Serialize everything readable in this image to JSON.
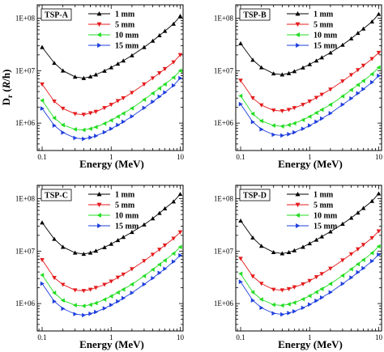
{
  "figure": {
    "ylabel_main": "D",
    "ylabel_sub": "r",
    "ylabel_unit_open": " (",
    "ylabel_unit_italic": "R",
    "ylabel_unit_close": "/h)",
    "xlabel": "Energy (MeV)"
  },
  "chart_data": [
    {
      "type": "line",
      "panel_label": "TSP-A",
      "xscale": "log",
      "yscale": "log",
      "xlim": [
        0.085,
        11
      ],
      "ylim": [
        300000,
        180000000
      ],
      "x_ticks": [
        {
          "value": 0.1,
          "label": "0.1"
        },
        {
          "value": 1,
          "label": "1"
        },
        {
          "value": 10,
          "label": "10"
        }
      ],
      "y_ticks": [
        {
          "value": 1000000,
          "label": "1E+06"
        },
        {
          "value": 10000000,
          "label": "1E+07"
        },
        {
          "value": 100000000,
          "label": "1E+08"
        }
      ],
      "legend_position": "top-center",
      "x": [
        0.1,
        0.15,
        0.2,
        0.3,
        0.4,
        0.5,
        0.6,
        0.8,
        1,
        1.25,
        1.5,
        2,
        3,
        4,
        5,
        6,
        8,
        10
      ],
      "series": [
        {
          "name": "1 mm",
          "color": "#000000",
          "marker": "up",
          "values": [
            28000000,
            14000000,
            10000000,
            7600000,
            7200000,
            7700000,
            8400000,
            9900000,
            11500000,
            13500000,
            15500000,
            19500000,
            28000000,
            37000000,
            47000000,
            57000000,
            78000000,
            110000000
          ]
        },
        {
          "name": "5 mm",
          "color": "#e41a1c",
          "marker": "down",
          "values": [
            5500000,
            2600000,
            1900000,
            1500000,
            1450000,
            1550000,
            1650000,
            1950000,
            2250000,
            2650000,
            3000000,
            3800000,
            5500000,
            7200000,
            9000000,
            10800000,
            14500000,
            20000000
          ]
        },
        {
          "name": "10 mm",
          "color": "#22dd22",
          "marker": "left",
          "values": [
            2700000,
            1250000,
            920000,
            760000,
            740000,
            780000,
            840000,
            980000,
            1130000,
            1330000,
            1530000,
            1920000,
            2800000,
            3700000,
            4600000,
            5500000,
            7400000,
            10000000
          ]
        },
        {
          "name": "15 mm",
          "color": "#1f3fdd",
          "marker": "right",
          "values": [
            1900000,
            900000,
            660000,
            520000,
            500000,
            530000,
            570000,
            670000,
            780000,
            920000,
            1060000,
            1340000,
            1950000,
            2550000,
            3200000,
            3850000,
            5200000,
            7200000
          ]
        }
      ]
    },
    {
      "type": "line",
      "panel_label": "TSP-B",
      "xscale": "log",
      "yscale": "log",
      "xlim": [
        0.085,
        11
      ],
      "ylim": [
        300000,
        180000000
      ],
      "x_ticks": [
        {
          "value": 0.1,
          "label": "0.1"
        },
        {
          "value": 1,
          "label": "1"
        },
        {
          "value": 10,
          "label": "10"
        }
      ],
      "y_ticks": [
        {
          "value": 1000000,
          "label": "1E+06"
        },
        {
          "value": 10000000,
          "label": "1E+07"
        },
        {
          "value": 100000000,
          "label": "1E+08"
        }
      ],
      "legend_position": "top-center",
      "x": [
        0.1,
        0.15,
        0.2,
        0.3,
        0.4,
        0.5,
        0.6,
        0.8,
        1,
        1.25,
        1.5,
        2,
        3,
        4,
        5,
        6,
        8,
        10
      ],
      "series": [
        {
          "name": "1 mm",
          "color": "#000000",
          "marker": "up",
          "values": [
            33000000,
            16000000,
            11500000,
            8800000,
            8400000,
            8900000,
            9700000,
            11400000,
            13200000,
            15500000,
            17800000,
            22000000,
            31000000,
            41000000,
            52000000,
            63000000,
            86000000,
            120000000
          ]
        },
        {
          "name": "5 mm",
          "color": "#e41a1c",
          "marker": "down",
          "values": [
            6500000,
            3000000,
            2200000,
            1750000,
            1700000,
            1800000,
            1950000,
            2250000,
            2600000,
            3050000,
            3500000,
            4400000,
            6300000,
            8300000,
            10300000,
            12500000,
            16800000,
            22000000
          ]
        },
        {
          "name": "10 mm",
          "color": "#22dd22",
          "marker": "left",
          "values": [
            3300000,
            1500000,
            1100000,
            900000,
            870000,
            920000,
            990000,
            1150000,
            1330000,
            1570000,
            1800000,
            2250000,
            3250000,
            4300000,
            5350000,
            6400000,
            8600000,
            11500000
          ]
        },
        {
          "name": "15 mm",
          "color": "#1f3fdd",
          "marker": "right",
          "values": [
            2300000,
            1050000,
            760000,
            600000,
            580000,
            615000,
            665000,
            780000,
            900000,
            1060000,
            1220000,
            1540000,
            2250000,
            2950000,
            3700000,
            4450000,
            6000000,
            8000000
          ]
        }
      ]
    },
    {
      "type": "line",
      "panel_label": "TSP-C",
      "xscale": "log",
      "yscale": "log",
      "xlim": [
        0.085,
        11
      ],
      "ylim": [
        300000,
        180000000
      ],
      "x_ticks": [
        {
          "value": 0.1,
          "label": "0.1"
        },
        {
          "value": 1,
          "label": "1"
        },
        {
          "value": 10,
          "label": "10"
        }
      ],
      "y_ticks": [
        {
          "value": 1000000,
          "label": "1E+06"
        },
        {
          "value": 10000000,
          "label": "1E+07"
        },
        {
          "value": 100000000,
          "label": "1E+08"
        }
      ],
      "legend_position": "top-center",
      "x": [
        0.1,
        0.15,
        0.2,
        0.3,
        0.4,
        0.5,
        0.6,
        0.8,
        1,
        1.25,
        1.5,
        2,
        3,
        4,
        5,
        6,
        8,
        10
      ],
      "series": [
        {
          "name": "1 mm",
          "color": "#000000",
          "marker": "up",
          "values": [
            35000000,
            17000000,
            12000000,
            9300000,
            8800000,
            9300000,
            10100000,
            11800000,
            13700000,
            16100000,
            18500000,
            23000000,
            32000000,
            42000000,
            53000000,
            65000000,
            88000000,
            122000000
          ]
        },
        {
          "name": "5 mm",
          "color": "#e41a1c",
          "marker": "down",
          "values": [
            6800000,
            3100000,
            2300000,
            1800000,
            1750000,
            1850000,
            2000000,
            2300000,
            2650000,
            3150000,
            3600000,
            4550000,
            6500000,
            8600000,
            10700000,
            12900000,
            17400000,
            23000000
          ]
        },
        {
          "name": "10 mm",
          "color": "#22dd22",
          "marker": "left",
          "values": [
            3500000,
            1600000,
            1150000,
            930000,
            900000,
            950000,
            1020000,
            1190000,
            1380000,
            1620000,
            1860000,
            2330000,
            3350000,
            4450000,
            5550000,
            6650000,
            9000000,
            12000000
          ]
        },
        {
          "name": "15 mm",
          "color": "#1f3fdd",
          "marker": "right",
          "values": [
            2400000,
            1100000,
            800000,
            630000,
            600000,
            640000,
            690000,
            810000,
            940000,
            1100000,
            1270000,
            1600000,
            2330000,
            3050000,
            3850000,
            4600000,
            6300000,
            8300000
          ]
        }
      ]
    },
    {
      "type": "line",
      "panel_label": "TSP-D",
      "xscale": "log",
      "yscale": "log",
      "xlim": [
        0.085,
        11
      ],
      "ylim": [
        300000,
        180000000
      ],
      "x_ticks": [
        {
          "value": 0.1,
          "label": "0.1"
        },
        {
          "value": 1,
          "label": "1"
        },
        {
          "value": 10,
          "label": "10"
        }
      ],
      "y_ticks": [
        {
          "value": 1000000,
          "label": "1E+06"
        },
        {
          "value": 10000000,
          "label": "1E+07"
        },
        {
          "value": 100000000,
          "label": "1E+08"
        }
      ],
      "legend_position": "top-center",
      "x": [
        0.1,
        0.15,
        0.2,
        0.3,
        0.4,
        0.5,
        0.6,
        0.8,
        1,
        1.25,
        1.5,
        2,
        3,
        4,
        5,
        6,
        8,
        10
      ],
      "series": [
        {
          "name": "1 mm",
          "color": "#000000",
          "marker": "up",
          "values": [
            38000000,
            18000000,
            12500000,
            9500000,
            9000000,
            9500000,
            10300000,
            12000000,
            14000000,
            16400000,
            18900000,
            23500000,
            33000000,
            43000000,
            54000000,
            66000000,
            90000000,
            125000000
          ]
        },
        {
          "name": "5 mm",
          "color": "#e41a1c",
          "marker": "down",
          "values": [
            7200000,
            3300000,
            2400000,
            1850000,
            1800000,
            1900000,
            2050000,
            2350000,
            2720000,
            3200000,
            3680000,
            4650000,
            6700000,
            8800000,
            10900000,
            13200000,
            17800000,
            24000000
          ]
        },
        {
          "name": "10 mm",
          "color": "#22dd22",
          "marker": "left",
          "values": [
            3700000,
            1650000,
            1200000,
            950000,
            920000,
            970000,
            1040000,
            1210000,
            1400000,
            1650000,
            1900000,
            2380000,
            3420000,
            4530000,
            5650000,
            6800000,
            9200000,
            12300000
          ]
        },
        {
          "name": "15 mm",
          "color": "#1f3fdd",
          "marker": "right",
          "values": [
            2600000,
            1150000,
            830000,
            650000,
            620000,
            660000,
            710000,
            830000,
            960000,
            1130000,
            1300000,
            1640000,
            2380000,
            3130000,
            3950000,
            4720000,
            6450000,
            8600000
          ]
        }
      ]
    }
  ]
}
